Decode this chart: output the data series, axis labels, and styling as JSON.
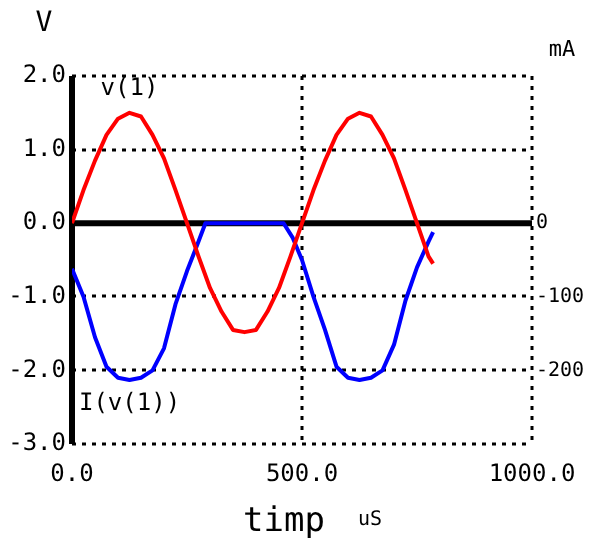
{
  "chart_data": {
    "type": "line",
    "xlabel": "timp",
    "ylabel": "V",
    "y2label": "mA",
    "annotations": [
      "uS"
    ],
    "xlim": [
      0,
      1000
    ],
    "xticks": [
      {
        "value": 0,
        "label": "0.0"
      },
      {
        "value": 500,
        "label": "500.0"
      },
      {
        "value": 1000,
        "label": "1000.0"
      }
    ],
    "ylim": [
      -3,
      2
    ],
    "yticks": [
      {
        "value": -3,
        "label": "-3.0"
      },
      {
        "value": -2,
        "label": "-2.0"
      },
      {
        "value": -1,
        "label": "-1.0"
      },
      {
        "value": 0,
        "label": "0.0"
      },
      {
        "value": 1,
        "label": "1.0"
      },
      {
        "value": 2,
        "label": "2.0"
      }
    ],
    "y2lim": [
      -300,
      200
    ],
    "y2ticks": [
      -200,
      -100,
      0
    ],
    "grid": true,
    "line_style": "solid",
    "marker": "none",
    "legend": false,
    "series": [
      {
        "name": "v(1)",
        "color": "#ff0000",
        "x": [
          0,
          25,
          50,
          75,
          100,
          125,
          150,
          175,
          200,
          225,
          250,
          275,
          300,
          325,
          350,
          375,
          400,
          425,
          450,
          475,
          500,
          525,
          550,
          575,
          600,
          625,
          650,
          675,
          700,
          725,
          750,
          775,
          785
        ],
        "values": [
          0,
          0.45,
          0.85,
          1.2,
          1.42,
          1.5,
          1.45,
          1.2,
          0.88,
          0.45,
          0,
          -0.45,
          -0.88,
          -1.2,
          -1.45,
          -1.48,
          -1.45,
          -1.2,
          -0.88,
          -0.45,
          0,
          0.45,
          0.85,
          1.2,
          1.42,
          1.5,
          1.45,
          1.2,
          0.88,
          0.45,
          0,
          -0.45,
          -0.55
        ]
      },
      {
        "name": "I(v(1))",
        "color": "#0000ff",
        "axis": "y2",
        "x": [
          0,
          25,
          50,
          75,
          100,
          125,
          150,
          175,
          200,
          225,
          250,
          275,
          290,
          350,
          400,
          460,
          480,
          500,
          525,
          550,
          575,
          600,
          625,
          650,
          675,
          700,
          725,
          750,
          775,
          785
        ],
        "values": [
          -62,
          -100,
          -155,
          -195,
          -210,
          -213,
          -210,
          -200,
          -170,
          -110,
          -65,
          -25,
          0,
          0,
          0,
          0,
          -20,
          -50,
          -100,
          -145,
          -195,
          -210,
          -213,
          -210,
          -200,
          -165,
          -105,
          -60,
          -25,
          -12
        ]
      }
    ]
  }
}
